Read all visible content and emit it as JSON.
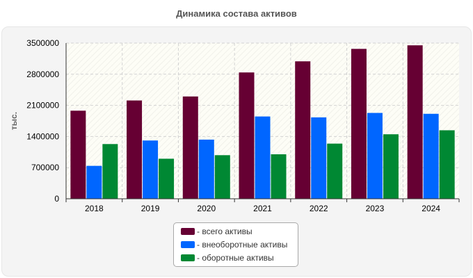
{
  "chart_data": {
    "type": "bar",
    "title": "Динамика состава активов",
    "xlabel": "",
    "ylabel": "тыс.",
    "ylim": [
      0,
      3500000
    ],
    "yticks": [
      "0",
      "700000",
      "1400000",
      "2100000",
      "2800000",
      "3500000"
    ],
    "categories": [
      "2018",
      "2019",
      "2020",
      "2021",
      "2022",
      "2023",
      "2024"
    ],
    "series": [
      {
        "name": "- всего активы",
        "color": "#660033",
        "values": [
          1980000,
          2210000,
          2300000,
          2840000,
          3090000,
          3370000,
          3450000
        ]
      },
      {
        "name": "- внеоборотные активы",
        "color": "#0066ff",
        "values": [
          740000,
          1310000,
          1330000,
          1850000,
          1830000,
          1930000,
          1910000
        ]
      },
      {
        "name": "- оборотные активы",
        "color": "#008833",
        "values": [
          1230000,
          900000,
          980000,
          1000000,
          1240000,
          1450000,
          1540000
        ]
      }
    ],
    "legend_position": "bottom-center",
    "grid": true
  }
}
